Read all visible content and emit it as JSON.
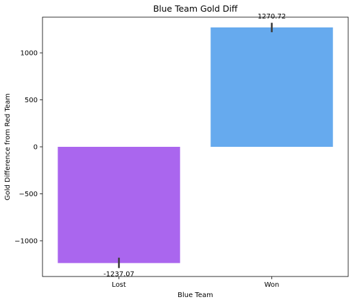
{
  "chart_data": {
    "type": "bar",
    "title": "Blue Team Gold Diff",
    "xlabel": "Blue Team",
    "ylabel": "Gold Difference from Red Team",
    "categories": [
      "Lost",
      "Won"
    ],
    "values": [
      -1237.07,
      1270.72
    ],
    "value_labels": [
      "-1237.07",
      "1270.72"
    ],
    "error_bars": [
      [
        -1290,
        -1180
      ],
      [
        1220,
        1320
      ]
    ],
    "colors": [
      "#aa66ee",
      "#66aaee"
    ],
    "ylim": [
      -1380,
      1380
    ],
    "yticks": [
      -1000,
      -500,
      0,
      500,
      1000
    ],
    "ytick_labels": [
      "−1000",
      "−500",
      "0",
      "500",
      "1000"
    ],
    "grid": false,
    "legend": "none"
  }
}
